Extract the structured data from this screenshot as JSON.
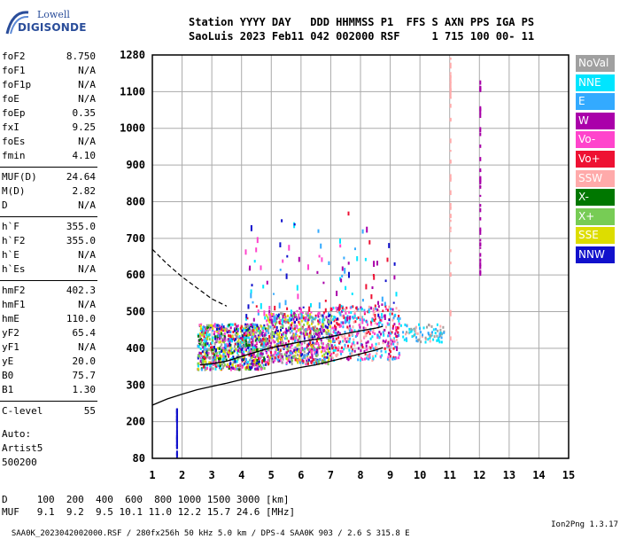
{
  "logo": {
    "line1": "Lowell",
    "line2": "DIGISONDE"
  },
  "station_header": {
    "line1": "Station YYYY DAY   DDD HHMMSS P1  FFS S AXN PPS IGA PS",
    "line2": "SaoLuis 2023 Feb11 042 002000 RSF     1 715 100 00- 11"
  },
  "params_group1": [
    {
      "label": "foF2",
      "value": "8.750"
    },
    {
      "label": "foF1",
      "value": "N/A"
    },
    {
      "label": "foF1p",
      "value": "N/A"
    },
    {
      "label": "foE",
      "value": "N/A"
    },
    {
      "label": "foEp",
      "value": "0.35"
    },
    {
      "label": "fxI",
      "value": "9.25"
    },
    {
      "label": "foEs",
      "value": "N/A"
    },
    {
      "label": "fmin",
      "value": "4.10"
    }
  ],
  "params_group2": [
    {
      "label": "MUF(D)",
      "value": "24.64"
    },
    {
      "label": "M(D)",
      "value": "2.82"
    },
    {
      "label": "D",
      "value": "N/A"
    }
  ],
  "params_group3": [
    {
      "label": "h`F",
      "value": "355.0"
    },
    {
      "label": "h`F2",
      "value": "355.0"
    },
    {
      "label": "h`E",
      "value": "N/A"
    },
    {
      "label": "h`Es",
      "value": "N/A"
    }
  ],
  "params_group4": [
    {
      "label": "hmF2",
      "value": "402.3"
    },
    {
      "label": "hmF1",
      "value": "N/A"
    },
    {
      "label": "hmE",
      "value": "110.0"
    },
    {
      "label": "yF2",
      "value": "65.4"
    },
    {
      "label": "yF1",
      "value": "N/A"
    },
    {
      "label": "yE",
      "value": "20.0"
    },
    {
      "label": "B0",
      "value": "75.7"
    },
    {
      "label": "B1",
      "value": "1.30"
    }
  ],
  "params_group5": [
    {
      "label": "C-level",
      "value": "55"
    }
  ],
  "auto_lines": [
    "Auto:",
    "Artist5",
    "500200"
  ],
  "legend": [
    {
      "label": "NoVal",
      "color": "#a0a0a0"
    },
    {
      "label": "NNE",
      "color": "#00e5ff"
    },
    {
      "label": "E",
      "color": "#33aaff"
    },
    {
      "label": "W",
      "color": "#aa00aa"
    },
    {
      "label": "Vo-",
      "color": "#ff44cc"
    },
    {
      "label": "Vo+",
      "color": "#ee1133"
    },
    {
      "label": "SSW",
      "color": "#ffaaaa"
    },
    {
      "label": "X-",
      "color": "#007700"
    },
    {
      "label": "X+",
      "color": "#77cc55"
    },
    {
      "label": "SSE",
      "color": "#dddd00"
    },
    {
      "label": "NNW",
      "color": "#1111cc"
    }
  ],
  "muf_table": {
    "d_line": "D     100  200  400  600  800 1000 1500 3000 [km]",
    "muf_line": "MUF   9.1  9.2  9.5 10.1 11.0 12.2 15.7 24.6 [MHz]"
  },
  "footer": {
    "left": "SAA0K_2023042002000.RSF / 280fx256h 50 kHz 5.0 km / DPS-4 SAA0K 903 / 2.6 S 315.8 E",
    "right": "Ion2Png 1.3.17"
  },
  "chart_data": {
    "type": "scatter",
    "xlabel": "",
    "ylabel": "",
    "xlim": [
      1,
      15
    ],
    "ylim": [
      80,
      1280
    ],
    "x_ticks": [
      1,
      2,
      3,
      4,
      5,
      6,
      7,
      8,
      9,
      10,
      11,
      12,
      13,
      14,
      15
    ],
    "y_ticks": [
      80,
      200,
      300,
      400,
      500,
      600,
      700,
      800,
      900,
      1000,
      1100,
      1280
    ],
    "grid": true,
    "legend_position": "right",
    "series": [
      {
        "kind": "echo-cluster",
        "x_range": [
          2.5,
          4.8
        ],
        "y_range": [
          345,
          470
        ],
        "density": 900,
        "colors": [
          "#aa00aa",
          "#dddd00",
          "#33aaff",
          "#00e5ff",
          "#77cc55",
          "#1111cc",
          "#ee1133",
          "#ff44cc",
          "#007700",
          "#a0a0a0"
        ]
      },
      {
        "kind": "echo-cluster",
        "x_range": [
          4.8,
          7.0
        ],
        "y_range": [
          360,
          500
        ],
        "density": 700,
        "colors": [
          "#aa00aa",
          "#ff44cc",
          "#33aaff",
          "#ee1133",
          "#dddd00",
          "#1111cc",
          "#77cc55",
          "#a0a0a0"
        ]
      },
      {
        "kind": "echo-cluster",
        "x_range": [
          7.0,
          9.3
        ],
        "y_range": [
          370,
          520
        ],
        "density": 420,
        "colors": [
          "#ee1133",
          "#ff44cc",
          "#aa00aa",
          "#00e5ff",
          "#ffaaaa",
          "#33aaff"
        ]
      },
      {
        "kind": "echo-cluster",
        "x_range": [
          9.3,
          10.8
        ],
        "y_range": [
          420,
          470
        ],
        "density": 90,
        "colors": [
          "#00e5ff",
          "#33aaff",
          "#ffaaaa",
          "#a0a0a0"
        ]
      },
      {
        "kind": "spikes",
        "x_range": [
          4.0,
          9.2
        ],
        "y_range": [
          480,
          780
        ],
        "density": 140,
        "colors": [
          "#aa00aa",
          "#00e5ff",
          "#33aaff",
          "#ff44cc",
          "#ee1133",
          "#1111cc"
        ]
      },
      {
        "kind": "vertical-trace",
        "x": 11.0,
        "y_range": [
          400,
          1280
        ],
        "color": "#ffaaaa"
      },
      {
        "kind": "vertical-trace",
        "x": 12.0,
        "y_range": [
          600,
          1180
        ],
        "color": "#aa00aa"
      },
      {
        "kind": "vertical-trace",
        "x": 1.8,
        "y_range": [
          85,
          240
        ],
        "color": "#1111cc"
      }
    ],
    "profile_dashed": {
      "x": [
        1.0,
        1.5,
        2.0,
        2.5,
        3.0,
        3.5
      ],
      "y": [
        670,
        630,
        595,
        565,
        535,
        515
      ]
    },
    "profile_solid": [
      {
        "x": [
          1.0,
          1.5,
          2.0,
          2.5,
          3.0,
          3.5,
          4.0,
          4.5,
          5.0,
          5.5,
          6.0,
          6.5,
          7.0,
          7.5,
          8.0,
          8.5,
          8.75
        ],
        "y": [
          245,
          262,
          275,
          287,
          296,
          305,
          315,
          324,
          332,
          340,
          348,
          355,
          365,
          375,
          385,
          395,
          402
        ]
      },
      {
        "x": [
          2.6,
          3.0,
          3.5,
          4.0,
          4.5,
          5.0,
          5.5,
          6.0,
          6.5,
          7.0,
          7.5,
          8.0,
          8.5,
          8.75
        ],
        "y": [
          355,
          358,
          365,
          378,
          390,
          402,
          410,
          418,
          425,
          432,
          440,
          448,
          455,
          460
        ]
      }
    ]
  }
}
